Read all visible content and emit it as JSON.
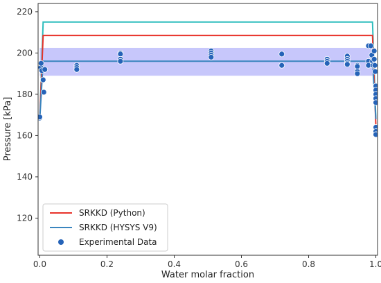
{
  "chart_data": {
    "type": "line",
    "title": "",
    "xlabel": "Water molar fraction",
    "ylabel": "Pressure [kPa]",
    "xlim": [
      -0.005,
      1.005
    ],
    "ylim": [
      102,
      224
    ],
    "xticks": [
      "0.0",
      "0.2",
      "0.4",
      "0.6",
      "0.8",
      "1.0"
    ],
    "xtick_values": [
      0,
      0.2,
      0.4,
      0.6,
      0.8,
      1.0
    ],
    "yticks": [
      "120",
      "140",
      "160",
      "180",
      "200",
      "220"
    ],
    "ytick_values": [
      120,
      140,
      160,
      180,
      200,
      220
    ],
    "grid": false,
    "legend_position": "bottom-left",
    "band": {
      "x": [
        0.0,
        0.99
      ],
      "y_low": 189,
      "y_high": 202.5,
      "color": "#c4c4fb"
    },
    "series": [
      {
        "name": "SRKKD (Python)",
        "kind": "line",
        "color": "#e8322a",
        "x": [
          0.0,
          0.01,
          0.99,
          1.0
        ],
        "y": [
          168,
          208.5,
          208.5,
          165
        ]
      },
      {
        "name": "SRKKD (HYSYS V9)",
        "kind": "line",
        "color": "#3a85bf",
        "x": [
          0.0,
          0.01,
          0.99,
          1.0
        ],
        "y": [
          168,
          196,
          196,
          168
        ]
      },
      {
        "name": "",
        "kind": "line",
        "color": "#2ebdbd",
        "x": [
          0.0,
          0.01,
          0.99,
          1.0
        ],
        "y": [
          168,
          215,
          215,
          168
        ]
      },
      {
        "name": "Experimental Data",
        "kind": "scatter",
        "color": "#2563b8",
        "x": [
          0.0,
          0.0,
          0.003,
          0.004,
          0.006,
          0.01,
          0.012,
          0.015,
          0.11,
          0.11,
          0.11,
          0.24,
          0.24,
          0.24,
          0.24,
          0.51,
          0.51,
          0.51,
          0.51,
          0.72,
          0.72,
          0.855,
          0.855,
          0.855,
          0.915,
          0.915,
          0.915,
          0.915,
          0.915,
          0.945,
          0.945,
          0.945,
          0.945,
          0.978,
          0.978,
          0.978,
          0.985,
          0.988,
          0.99,
          0.992,
          0.995,
          0.995,
          0.997,
          0.998,
          1.0,
          1.0,
          1.0,
          1.0,
          1.0,
          1.0,
          1.0,
          1.0
        ],
        "y": [
          168.5,
          169,
          193,
          195,
          191.5,
          187,
          181,
          192,
          194,
          193,
          192,
          200,
          199.5,
          197,
          196,
          201,
          200,
          199,
          198,
          199.5,
          194,
          197,
          196,
          195,
          198.5,
          197,
          196,
          195,
          194.5,
          194,
          193.5,
          191,
          190,
          203.5,
          196,
          194,
          203.5,
          199,
          196,
          194,
          201,
          197,
          194,
          191,
          184,
          182,
          180,
          178,
          176,
          164,
          162,
          160.5
        ]
      }
    ]
  }
}
